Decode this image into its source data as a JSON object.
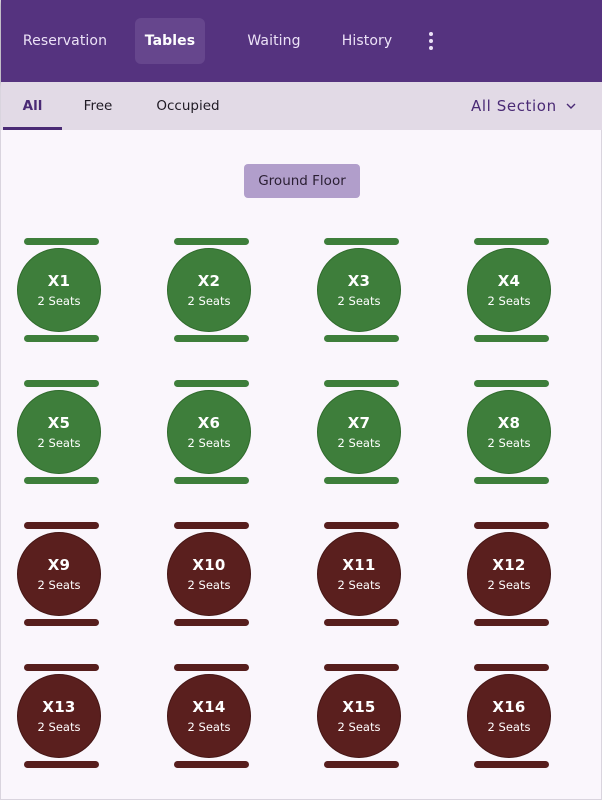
{
  "nav": {
    "tabs": [
      {
        "label": "Reservation"
      },
      {
        "label": "Tables"
      },
      {
        "label": "Waiting"
      },
      {
        "label": "History"
      }
    ],
    "active": "Tables",
    "more_icon": "more-vertical-icon"
  },
  "filters": {
    "tabs": [
      {
        "label": "All"
      },
      {
        "label": "Free"
      },
      {
        "label": "Occupied"
      }
    ],
    "active": "All",
    "section": {
      "label": "All Section",
      "icon": "chevron-down-icon"
    }
  },
  "floor": {
    "label": "Ground Floor"
  },
  "colors": {
    "header": "#55337f",
    "free": "#3e7e3b",
    "occupied": "#5a1f1e",
    "accent": "#4a2a75"
  },
  "tables": [
    {
      "name": "X1",
      "seats": "2 Seats",
      "status": "free"
    },
    {
      "name": "X2",
      "seats": "2 Seats",
      "status": "free"
    },
    {
      "name": "X3",
      "seats": "2 Seats",
      "status": "free"
    },
    {
      "name": "X4",
      "seats": "2 Seats",
      "status": "free"
    },
    {
      "name": "X5",
      "seats": "2 Seats",
      "status": "free"
    },
    {
      "name": "X6",
      "seats": "2 Seats",
      "status": "free"
    },
    {
      "name": "X7",
      "seats": "2 Seats",
      "status": "free"
    },
    {
      "name": "X8",
      "seats": "2 Seats",
      "status": "free"
    },
    {
      "name": "X9",
      "seats": "2 Seats",
      "status": "occupied"
    },
    {
      "name": "X10",
      "seats": "2 Seats",
      "status": "occupied"
    },
    {
      "name": "X11",
      "seats": "2 Seats",
      "status": "occupied"
    },
    {
      "name": "X12",
      "seats": "2 Seats",
      "status": "occupied"
    },
    {
      "name": "X13",
      "seats": "2 Seats",
      "status": "occupied"
    },
    {
      "name": "X14",
      "seats": "2 Seats",
      "status": "occupied"
    },
    {
      "name": "X15",
      "seats": "2 Seats",
      "status": "occupied"
    },
    {
      "name": "X16",
      "seats": "2 Seats",
      "status": "occupied"
    }
  ]
}
